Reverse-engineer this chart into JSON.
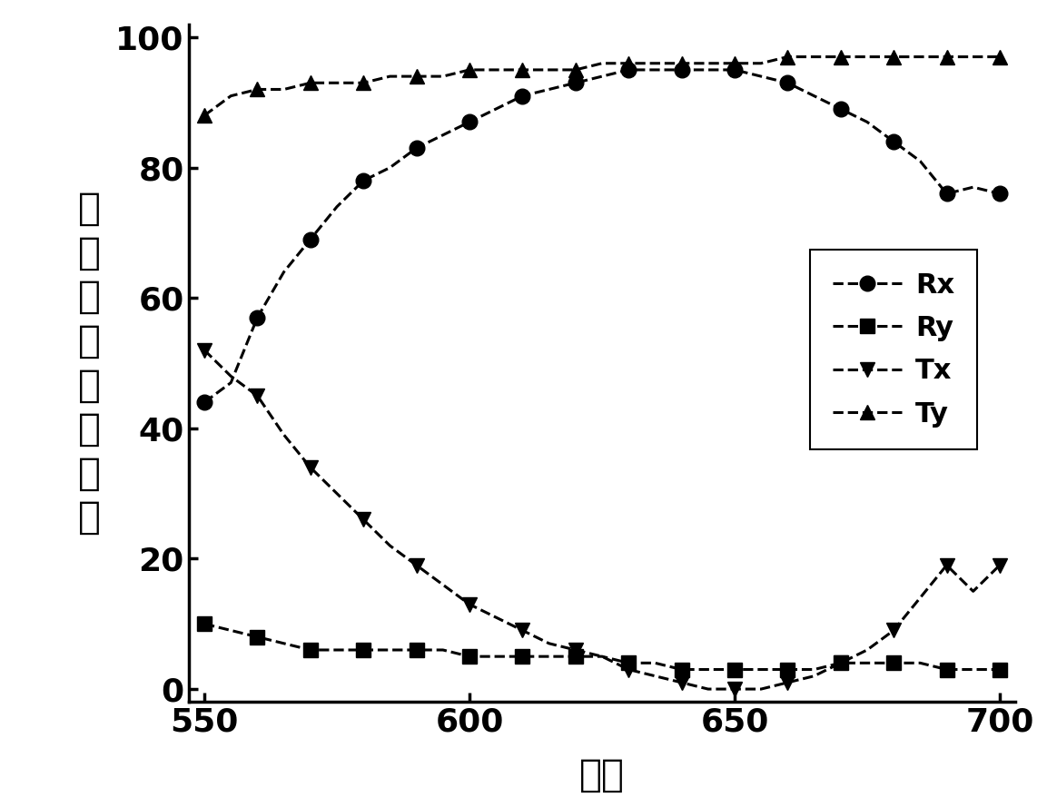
{
  "x": [
    550,
    555,
    560,
    565,
    570,
    575,
    580,
    585,
    590,
    595,
    600,
    605,
    610,
    615,
    620,
    625,
    630,
    635,
    640,
    645,
    650,
    655,
    660,
    665,
    670,
    675,
    680,
    685,
    690,
    695,
    700
  ],
  "Rx": [
    44,
    47,
    57,
    64,
    69,
    74,
    78,
    80,
    83,
    85,
    87,
    89,
    91,
    92,
    93,
    94,
    95,
    95,
    95,
    95,
    95,
    94,
    93,
    91,
    89,
    87,
    84,
    81,
    76,
    77,
    76
  ],
  "Ry": [
    10,
    9,
    8,
    7,
    6,
    6,
    6,
    6,
    6,
    6,
    5,
    5,
    5,
    5,
    5,
    5,
    4,
    4,
    3,
    3,
    3,
    3,
    3,
    3,
    4,
    4,
    4,
    4,
    3,
    3,
    3
  ],
  "Tx": [
    52,
    48,
    45,
    39,
    34,
    30,
    26,
    22,
    19,
    16,
    13,
    11,
    9,
    7,
    6,
    5,
    3,
    2,
    1,
    0,
    0,
    0,
    1,
    2,
    4,
    6,
    9,
    14,
    19,
    15,
    19
  ],
  "Ty": [
    88,
    91,
    92,
    92,
    93,
    93,
    93,
    94,
    94,
    94,
    95,
    95,
    95,
    95,
    95,
    96,
    96,
    96,
    96,
    96,
    96,
    96,
    97,
    97,
    97,
    97,
    97,
    97,
    97,
    97,
    97
  ],
  "xlabel": "波长",
  "ylabel_chars": [
    "反",
    "射",
    "效",
    "率",
    "和",
    "透",
    "过",
    "率"
  ],
  "xlim": [
    547,
    703
  ],
  "ylim": [
    -2,
    102
  ],
  "xticks": [
    550,
    600,
    650,
    700
  ],
  "yticks": [
    0,
    20,
    40,
    60,
    80,
    100
  ],
  "legend_labels": [
    "Rx",
    "Ry",
    "Tx",
    "Ty"
  ],
  "line_color": "#000000",
  "background_color": "#ffffff",
  "tick_fontsize": 26,
  "label_fontsize": 30,
  "legend_fontsize": 22,
  "marker_size": 12,
  "line_width": 2.2,
  "markevery": 2
}
